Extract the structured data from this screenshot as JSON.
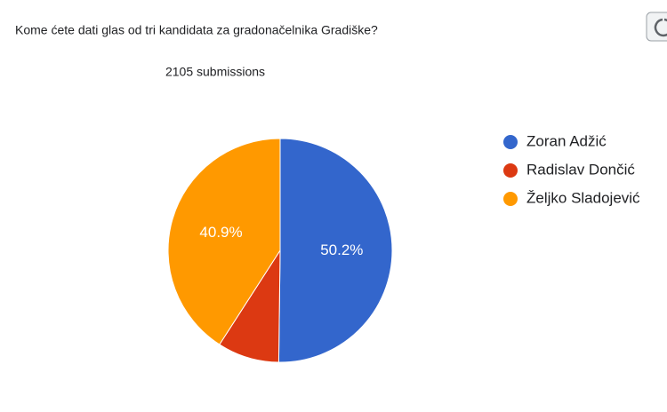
{
  "chart_data": {
    "type": "pie",
    "title": "Kome ćete dati glas od tri kandidata za gradonačelnika Gradiške?",
    "subtitle": "2105 submissions",
    "categories": [
      "Zoran Adžić",
      "Radislav Dončić",
      "Željko Sladojević"
    ],
    "values": [
      50.2,
      8.9,
      40.9
    ],
    "value_labels": [
      "50.2%",
      null,
      "40.9%"
    ],
    "colors": [
      "#3366cc",
      "#dc3912",
      "#ff9900"
    ],
    "legend": "right"
  }
}
